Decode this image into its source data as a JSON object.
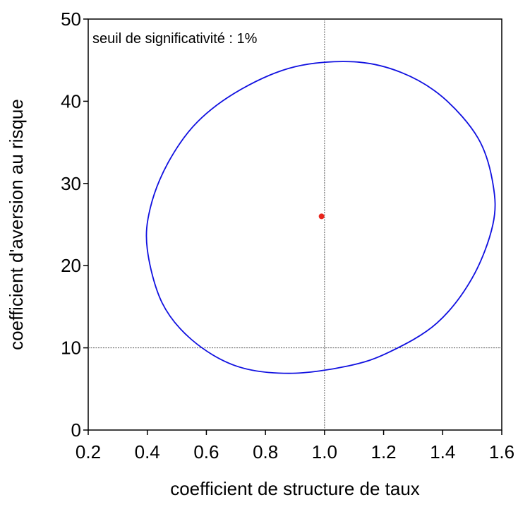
{
  "chart_data": {
    "type": "scatter",
    "title": "",
    "xlabel": "coefficient de structure de taux",
    "ylabel": "coefficient d'aversion au risque",
    "xlim": [
      0.2,
      1.6
    ],
    "ylim": [
      0,
      50
    ],
    "xticks": [
      0.2,
      0.4,
      0.6,
      0.8,
      1.0,
      1.2,
      1.4,
      1.6
    ],
    "xtick_labels": [
      "0.2",
      "0.4",
      "0.6",
      "0.8",
      "1.0",
      "1.2",
      "1.4",
      "1.6"
    ],
    "yticks": [
      0,
      10,
      20,
      30,
      40,
      50
    ],
    "ytick_labels": [
      "0",
      "10",
      "20",
      "30",
      "40",
      "50"
    ],
    "annotation": "seuil de significativité : 1%",
    "reference_lines": {
      "x": 1.0,
      "y": 10
    },
    "point_estimate": {
      "x": 0.99,
      "y": 26,
      "color": "#e8251c"
    },
    "confidence_ellipse": {
      "color": "#1010e0",
      "points": [
        [
          1.1,
          44.8
        ],
        [
          1.26,
          43.5
        ],
        [
          1.4,
          40.5
        ],
        [
          1.52,
          35.5
        ],
        [
          1.57,
          30.0
        ],
        [
          1.57,
          25.0
        ],
        [
          1.5,
          18.5
        ],
        [
          1.38,
          13.0
        ],
        [
          1.22,
          9.5
        ],
        [
          1.08,
          7.8
        ],
        [
          0.88,
          6.9
        ],
        [
          0.7,
          7.8
        ],
        [
          0.55,
          11.0
        ],
        [
          0.45,
          15.5
        ],
        [
          0.4,
          22.0
        ],
        [
          0.41,
          27.0
        ],
        [
          0.47,
          32.5
        ],
        [
          0.57,
          37.5
        ],
        [
          0.72,
          41.5
        ],
        [
          0.9,
          44.2
        ]
      ]
    },
    "grid": false,
    "legend": "none"
  }
}
